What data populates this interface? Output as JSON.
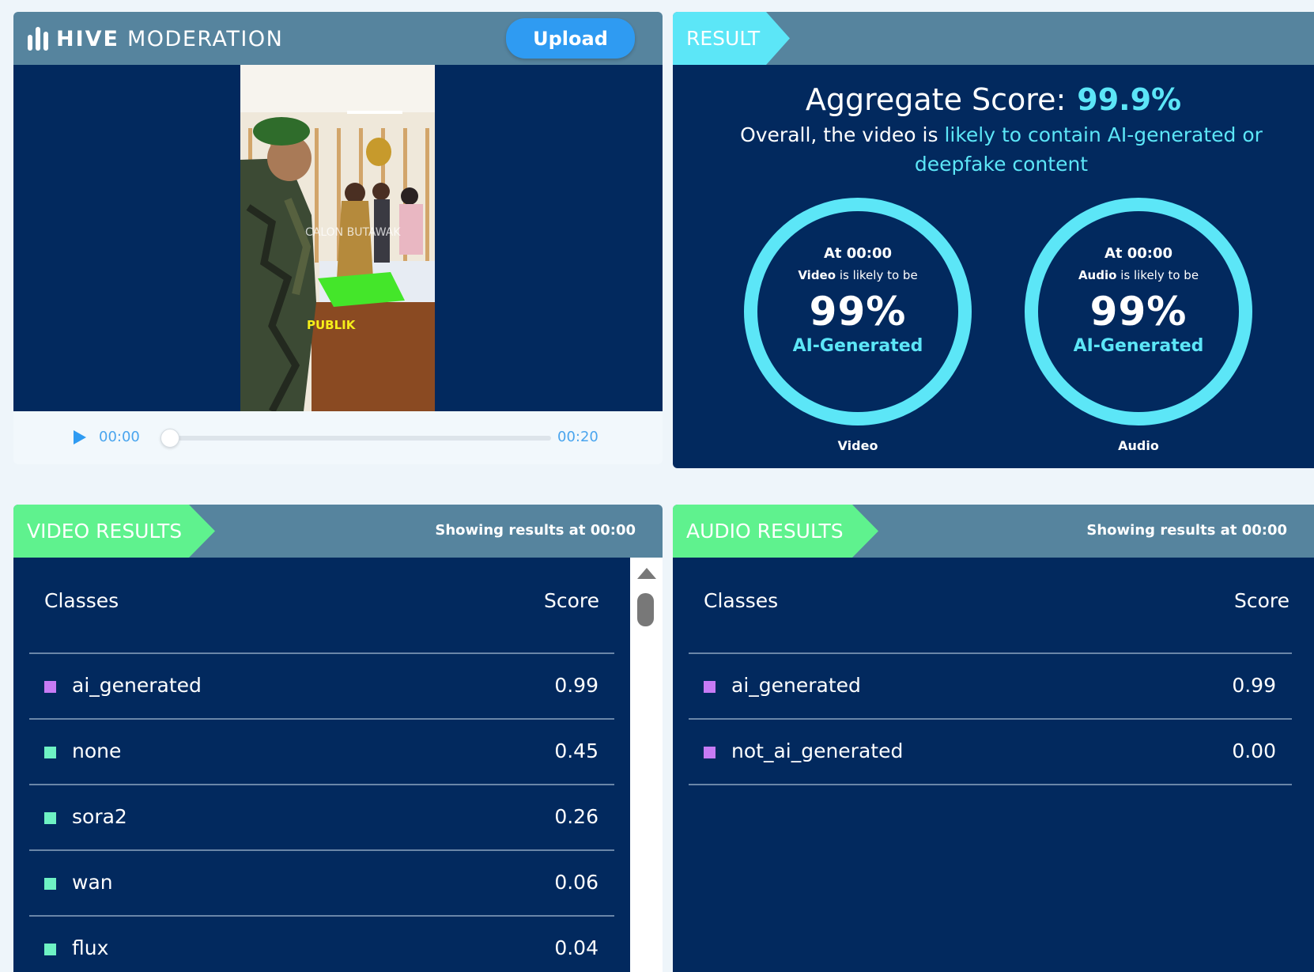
{
  "uploader": {
    "brand_bold": "HIVE",
    "brand_light": "MODERATION",
    "upload_label": "Upload",
    "overlay_caption": "CALON BUTAWAK",
    "overlay_badge": "PUBLIK",
    "current_time": "00:00",
    "duration": "00:20",
    "progress": 0
  },
  "result": {
    "tag": "RESULT",
    "aggregate_label": "Aggregate Score:",
    "aggregate_value": "99.9%",
    "summary_prefix": "Overall, the video is",
    "summary_highlight": "likely to contain AI-generated or deepfake content",
    "gauges": [
      {
        "at": "At 00:00",
        "subject": "Video",
        "likely": "is likely to be",
        "pct": "99%",
        "cls": "AI-Generated",
        "caption": "Video"
      },
      {
        "at": "At 00:00",
        "subject": "Audio",
        "likely": "is likely to be",
        "pct": "99%",
        "cls": "AI-Generated",
        "caption": "Audio"
      }
    ],
    "accent_color": "#5ce6f7"
  },
  "video_results": {
    "tag": "VIDEO RESULTS",
    "showing": "Showing results at 00:00",
    "col_classes": "Classes",
    "col_score": "Score",
    "rows": [
      {
        "name": "ai_generated",
        "score": "0.99",
        "color": "#c77bf5"
      },
      {
        "name": "none",
        "score": "0.45",
        "color": "#6ef2c4"
      },
      {
        "name": "sora2",
        "score": "0.26",
        "color": "#6ef2c4"
      },
      {
        "name": "wan",
        "score": "0.06",
        "color": "#6ef2c4"
      },
      {
        "name": "flux",
        "score": "0.04",
        "color": "#6ef2c4"
      }
    ]
  },
  "audio_results": {
    "tag": "AUDIO RESULTS",
    "showing": "Showing results at 00:00",
    "col_classes": "Classes",
    "col_score": "Score",
    "rows": [
      {
        "name": "ai_generated",
        "score": "0.99",
        "color": "#c77bf5"
      },
      {
        "name": "not_ai_generated",
        "score": "0.00",
        "color": "#c77bf5"
      }
    ]
  }
}
